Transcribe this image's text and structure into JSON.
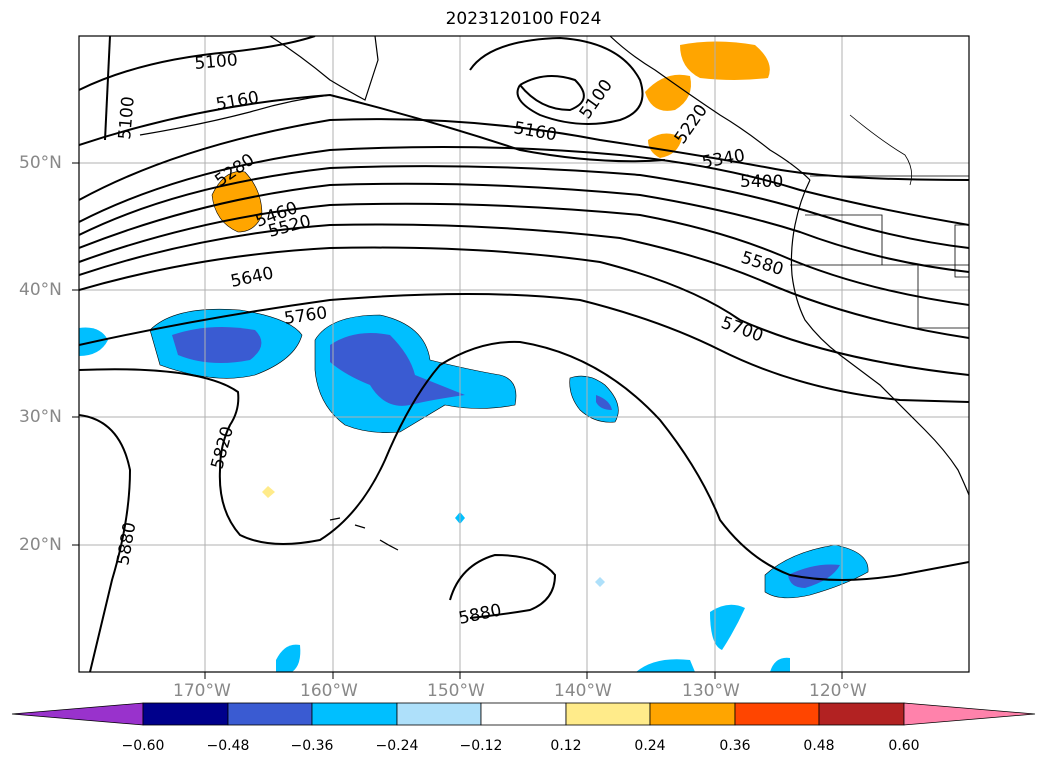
{
  "title": "2023120100 F024",
  "latitude_labels": [
    "50°N",
    "40°N",
    "30°N",
    "20°N"
  ],
  "longitude_labels": [
    "170°W",
    "160°W",
    "150°W",
    "140°W",
    "130°W",
    "120°W"
  ],
  "contour_labels": [
    "5100",
    "5100",
    "5100",
    "5160",
    "5160",
    "5280",
    "5220",
    "5340",
    "5400",
    "5460",
    "5520",
    "5580",
    "5640",
    "5700",
    "5760",
    "5820",
    "5880",
    "5880"
  ],
  "colorbar": {
    "ticks": [
      "−0.60",
      "−0.48",
      "−0.36",
      "−0.24",
      "−0.12",
      "0.12",
      "0.24",
      "0.36",
      "0.48",
      "0.60"
    ],
    "colors": [
      "#9932cc",
      "#00008b",
      "#3a5bd2",
      "#00bfff",
      "#aee0fa",
      "#ffffff",
      "#ffeb8a",
      "#ffa500",
      "#ff4500",
      "#b22222",
      "#ff82ab"
    ]
  }
}
